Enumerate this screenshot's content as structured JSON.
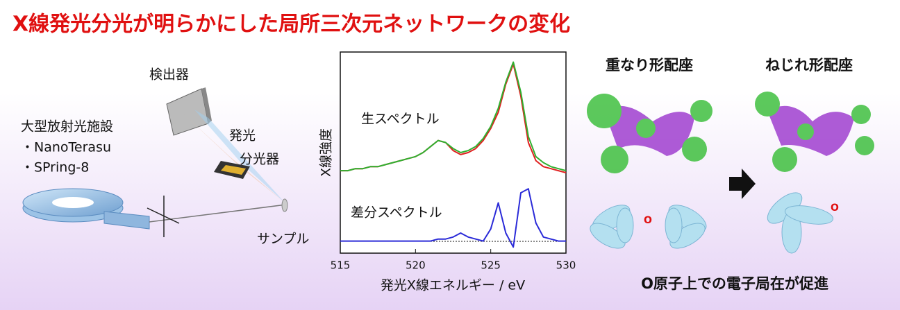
{
  "title": "X線発光分光が明らかにした局所三次元ネットワークの変化",
  "setup": {
    "detector": "検出器",
    "spectrometer_line1": "発光",
    "spectrometer_line2": "分光器",
    "facility": "大型放射光施設",
    "facility_1": "・NanoTerasu",
    "facility_2": "・SPring-8",
    "sample": "サンプル"
  },
  "conformers": {
    "eclipsed": "重なり形配座",
    "twisted": "ねじれ形配座",
    "atom_label_1": "O",
    "atom_label_2": "O",
    "conclusion": "O原子上での電子局在が促進"
  },
  "chart_data": {
    "type": "line",
    "xlabel": "発光X線エネルギー / eV",
    "ylabel": "X線強度",
    "annotations": [
      "生スペクトル",
      "差分スペクトル"
    ],
    "x": [
      515,
      515.5,
      516,
      516.5,
      517,
      517.5,
      518,
      518.5,
      519,
      519.5,
      520,
      520.5,
      521,
      521.5,
      522,
      522.5,
      523,
      523.5,
      524,
      524.5,
      525,
      525.5,
      526,
      526.5,
      527,
      527.5,
      528,
      528.5,
      529,
      529.5,
      530
    ],
    "series": [
      {
        "color": "#e02020",
        "values": [
          0.41,
          0.41,
          0.42,
          0.42,
          0.43,
          0.43,
          0.44,
          0.45,
          0.46,
          0.47,
          0.48,
          0.5,
          0.53,
          0.56,
          0.55,
          0.51,
          0.49,
          0.5,
          0.52,
          0.56,
          0.62,
          0.7,
          0.84,
          0.94,
          0.78,
          0.55,
          0.46,
          0.43,
          0.42,
          0.41,
          0.4
        ]
      },
      {
        "color": "#30b030",
        "values": [
          0.41,
          0.41,
          0.42,
          0.42,
          0.43,
          0.43,
          0.44,
          0.45,
          0.46,
          0.47,
          0.48,
          0.5,
          0.53,
          0.56,
          0.55,
          0.52,
          0.5,
          0.51,
          0.53,
          0.57,
          0.63,
          0.72,
          0.85,
          0.95,
          0.8,
          0.58,
          0.48,
          0.45,
          0.43,
          0.42,
          0.41
        ]
      },
      {
        "color": "#2a2ad8",
        "values": [
          0.06,
          0.06,
          0.06,
          0.06,
          0.06,
          0.06,
          0.06,
          0.06,
          0.06,
          0.06,
          0.06,
          0.06,
          0.06,
          0.07,
          0.07,
          0.08,
          0.1,
          0.08,
          0.07,
          0.06,
          0.12,
          0.25,
          0.1,
          0.03,
          0.3,
          0.32,
          0.15,
          0.08,
          0.07,
          0.06,
          0.06
        ]
      }
    ],
    "xlim": [
      515,
      530
    ],
    "xticks": [
      515,
      520,
      525,
      530
    ],
    "ylim": [
      0,
      1
    ]
  }
}
